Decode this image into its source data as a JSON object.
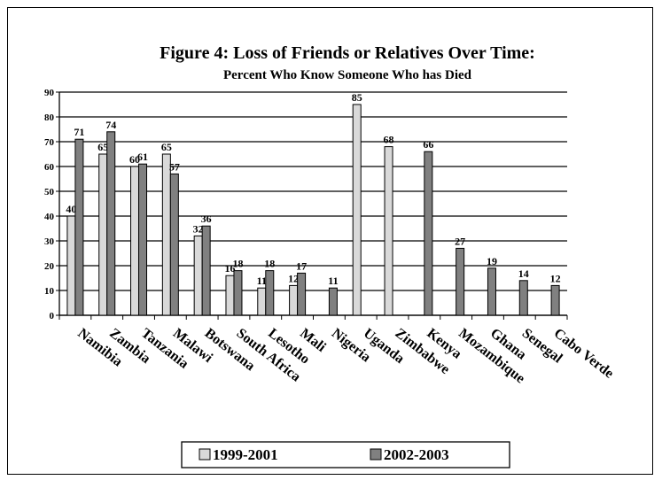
{
  "chart_data": {
    "type": "bar",
    "title": "Figure 4: Loss of Friends or Relatives Over Time:",
    "subtitle": "Percent Who Know Someone Who has Died",
    "ylim": [
      0,
      90
    ],
    "yticks": [
      0,
      10,
      20,
      30,
      40,
      50,
      60,
      70,
      80,
      90
    ],
    "grid": true,
    "legend_position": "bottom",
    "categories": [
      "Namibia",
      "Zambia",
      "Tanzania",
      "Malawi",
      "Botswana",
      "South Africa",
      "Lesotho",
      "Mali",
      "Nigeria",
      "Uganda",
      "Zimbabwe",
      "Kenya",
      "Mozambique",
      "Ghana",
      "Senegal",
      "Cabo Verde"
    ],
    "series": [
      {
        "name": "1999-2001",
        "color": "#d9d9d9",
        "values": [
          40,
          65,
          60,
          65,
          32,
          16,
          11,
          12,
          null,
          85,
          68,
          null,
          null,
          null,
          null,
          null
        ]
      },
      {
        "name": "2002-2003",
        "color": "#808080",
        "values": [
          71,
          74,
          61,
          57,
          36,
          18,
          18,
          17,
          11,
          null,
          null,
          66,
          27,
          19,
          14,
          12
        ]
      }
    ]
  }
}
